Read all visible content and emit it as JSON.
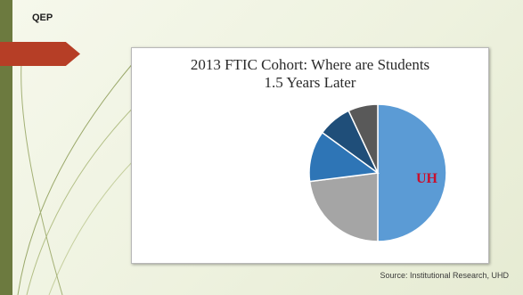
{
  "slide": {
    "label": "QEP",
    "source": "Source: Institutional Research, UHD"
  },
  "colors": {
    "accent_strip": "#6c7a3f",
    "arrow": "#b63e26",
    "background": "#eef2df"
  },
  "chart_data": {
    "type": "pie",
    "title_line1": "2013 FTIC Cohort: Where are Students",
    "title_line2": "1.5 Years Later",
    "slices": [
      {
        "value": 50,
        "color": "#5b9bd5"
      },
      {
        "value": 23,
        "color": "#a5a5a5"
      },
      {
        "value": 12,
        "color": "#2e75b6"
      },
      {
        "value": 8,
        "color": "#1f4e79"
      },
      {
        "value": 7,
        "color": "#595959"
      }
    ],
    "center_logo_text": "UH",
    "legend": [
      "",
      "",
      "",
      "",
      ""
    ],
    "label_placement": "outside-left and inside-right"
  }
}
